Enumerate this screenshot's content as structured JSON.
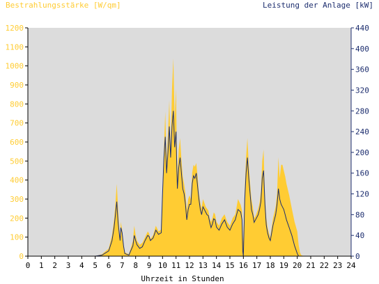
{
  "colors": {
    "irradiance": "#ffcc33",
    "power": "#1c2d6e",
    "plot_bg": "#dcdcdc",
    "axis": "#000000",
    "title_left": "#ffcc33",
    "title_right": "#1c2d6e"
  },
  "chart_data": {
    "type": "area",
    "title_left": "Bestrahlungsstärke [W/qm]",
    "title_right": "Leistung der Anlage [kW]",
    "xlabel": "Uhrzeit in Stunden",
    "xlim": [
      0,
      24
    ],
    "x_ticks": [
      "0",
      "1",
      "2",
      "3",
      "4",
      "5",
      "6",
      "7",
      "8",
      "9",
      "10",
      "11",
      "12",
      "13",
      "14",
      "15",
      "16",
      "17",
      "18",
      "19",
      "20",
      "21",
      "22",
      "23",
      "24"
    ],
    "y_left_lim": [
      0,
      1200
    ],
    "y_left_ticks": [
      "0",
      "100",
      "200",
      "300",
      "400",
      "500",
      "600",
      "700",
      "800",
      "900",
      "1000",
      "1100",
      "1200"
    ],
    "y_right_lim": [
      0,
      440
    ],
    "y_right_ticks": [
      "0",
      "40",
      "80",
      "120",
      "160",
      "200",
      "240",
      "280",
      "320",
      "360",
      "400",
      "440"
    ],
    "grid": false,
    "series": [
      {
        "name": "Bestrahlungsstärke",
        "axis": "left",
        "style": "filled-area",
        "x": [
          0,
          5.0,
          5.5,
          6.0,
          6.25,
          6.4,
          6.5,
          6.6,
          6.7,
          6.8,
          6.85,
          6.9,
          7.0,
          7.1,
          7.2,
          7.5,
          7.8,
          7.9,
          8.0,
          8.1,
          8.3,
          8.5,
          8.7,
          8.9,
          9.0,
          9.1,
          9.3,
          9.5,
          9.7,
          9.9,
          10.0,
          10.1,
          10.2,
          10.3,
          10.4,
          10.5,
          10.6,
          10.7,
          10.8,
          10.9,
          11.0,
          11.05,
          11.1,
          11.2,
          11.3,
          11.4,
          11.5,
          11.6,
          11.7,
          11.8,
          11.9,
          12.0,
          12.1,
          12.2,
          12.3,
          12.4,
          12.5,
          12.6,
          12.7,
          12.8,
          12.9,
          13.0,
          13.1,
          13.2,
          13.3,
          13.4,
          13.5,
          13.6,
          13.7,
          13.8,
          13.9,
          14.0,
          14.2,
          14.4,
          14.6,
          14.8,
          15.0,
          15.2,
          15.4,
          15.6,
          15.8,
          15.9,
          15.95,
          16.0,
          16.1,
          16.2,
          16.3,
          16.4,
          16.5,
          16.6,
          16.7,
          16.8,
          16.9,
          17.0,
          17.1,
          17.2,
          17.3,
          17.4,
          17.5,
          17.6,
          17.7,
          17.8,
          17.9,
          18.0,
          18.2,
          18.4,
          18.5,
          18.6,
          18.7,
          18.8,
          18.9,
          19.0,
          19.1,
          19.2,
          19.4,
          19.6,
          19.8,
          20.0,
          20.1,
          20.2,
          20.3,
          20.5,
          21.0,
          24.0
        ],
        "values": [
          0,
          0,
          10,
          40,
          110,
          190,
          280,
          380,
          250,
          120,
          80,
          180,
          140,
          60,
          20,
          10,
          80,
          160,
          110,
          80,
          60,
          70,
          100,
          130,
          120,
          90,
          110,
          160,
          130,
          140,
          360,
          560,
          760,
          500,
          640,
          820,
          560,
          880,
          1040,
          720,
          880,
          600,
          420,
          560,
          620,
          510,
          420,
          380,
          330,
          240,
          300,
          320,
          300,
          440,
          480,
          470,
          490,
          420,
          330,
          280,
          250,
          300,
          280,
          260,
          250,
          240,
          200,
          180,
          200,
          230,
          220,
          180,
          160,
          200,
          220,
          180,
          160,
          200,
          220,
          300,
          270,
          240,
          120,
          70,
          350,
          520,
          620,
          480,
          380,
          300,
          260,
          200,
          210,
          230,
          250,
          280,
          340,
          500,
          560,
          320,
          200,
          150,
          120,
          100,
          200,
          260,
          330,
          520,
          410,
          480,
          480,
          450,
          420,
          380,
          320,
          250,
          180,
          130,
          60,
          20,
          5,
          0,
          0,
          0
        ]
      },
      {
        "name": "Leistung der Anlage",
        "axis": "right",
        "style": "line",
        "x": [
          0,
          5.0,
          5.5,
          6.0,
          6.25,
          6.4,
          6.5,
          6.6,
          6.7,
          6.8,
          6.85,
          6.9,
          7.0,
          7.1,
          7.2,
          7.5,
          7.8,
          7.9,
          8.0,
          8.1,
          8.3,
          8.5,
          8.7,
          8.9,
          9.0,
          9.1,
          9.3,
          9.5,
          9.7,
          9.9,
          10.0,
          10.1,
          10.2,
          10.3,
          10.4,
          10.5,
          10.6,
          10.7,
          10.8,
          10.9,
          11.0,
          11.05,
          11.1,
          11.2,
          11.3,
          11.4,
          11.5,
          11.6,
          11.7,
          11.8,
          11.9,
          12.0,
          12.1,
          12.2,
          12.3,
          12.4,
          12.5,
          12.6,
          12.7,
          12.8,
          12.9,
          13.0,
          13.1,
          13.2,
          13.3,
          13.4,
          13.5,
          13.6,
          13.7,
          13.8,
          13.9,
          14.0,
          14.2,
          14.4,
          14.6,
          14.8,
          15.0,
          15.2,
          15.4,
          15.6,
          15.8,
          15.9,
          15.95,
          16.0,
          16.1,
          16.2,
          16.3,
          16.4,
          16.5,
          16.6,
          16.7,
          16.8,
          16.9,
          17.0,
          17.1,
          17.2,
          17.3,
          17.4,
          17.5,
          17.6,
          17.7,
          17.8,
          17.9,
          18.0,
          18.2,
          18.4,
          18.5,
          18.6,
          18.7,
          18.8,
          18.9,
          19.0,
          19.1,
          19.2,
          19.4,
          19.6,
          19.8,
          20.0,
          20.1,
          20.2,
          20.3,
          20.5,
          21.0,
          24.0
        ],
        "values": [
          0,
          0,
          2,
          10,
          30,
          55,
          80,
          105,
          65,
          40,
          30,
          55,
          45,
          20,
          5,
          2,
          20,
          40,
          30,
          22,
          15,
          18,
          30,
          40,
          38,
          30,
          35,
          50,
          42,
          45,
          120,
          190,
          230,
          160,
          200,
          250,
          190,
          250,
          280,
          210,
          240,
          180,
          130,
          170,
          190,
          160,
          130,
          120,
          100,
          70,
          90,
          100,
          100,
          140,
          155,
          150,
          160,
          135,
          110,
          90,
          80,
          95,
          90,
          85,
          80,
          78,
          65,
          55,
          62,
          72,
          70,
          56,
          50,
          62,
          70,
          56,
          50,
          62,
          70,
          90,
          85,
          70,
          10,
          0,
          110,
          160,
          190,
          150,
          120,
          90,
          80,
          65,
          70,
          75,
          80,
          90,
          105,
          150,
          165,
          100,
          60,
          45,
          35,
          30,
          60,
          80,
          100,
          130,
          110,
          100,
          95,
          90,
          80,
          70,
          55,
          40,
          20,
          5,
          0,
          0,
          0,
          0,
          0,
          0
        ]
      }
    ]
  }
}
